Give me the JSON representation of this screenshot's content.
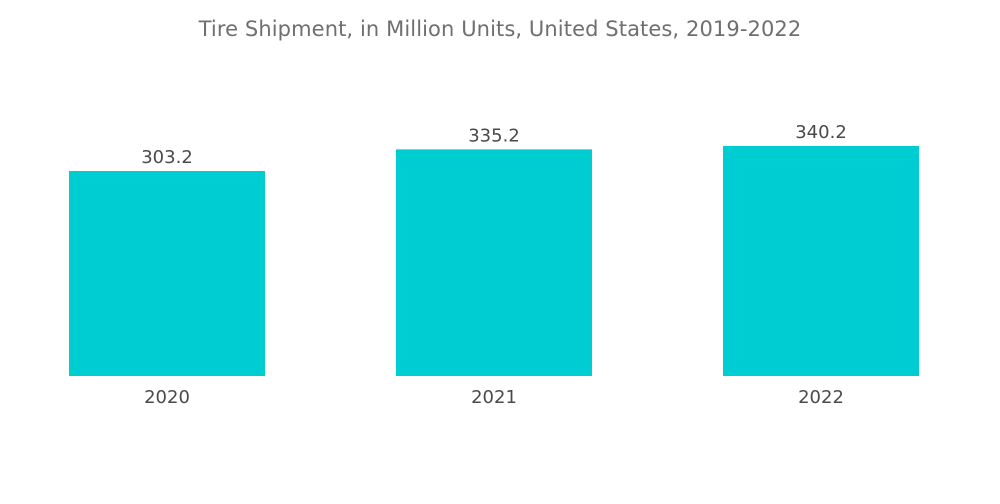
{
  "colors": {
    "bar": "#00cdd2",
    "title": "#6f6f6f",
    "label": "#4a4a4a"
  },
  "chart_data": {
    "type": "bar",
    "title": "Tire Shipment, in Million Units, United States, 2019-2022",
    "xlabel": "",
    "ylabel": "",
    "categories": [
      "2020",
      "2021",
      "2022"
    ],
    "values": [
      303.2,
      335.2,
      340.2
    ],
    "value_labels": [
      "303.2",
      "335.2",
      "340.2"
    ],
    "ylim": [
      0,
      340.2
    ],
    "grid": false,
    "legend": "none"
  }
}
